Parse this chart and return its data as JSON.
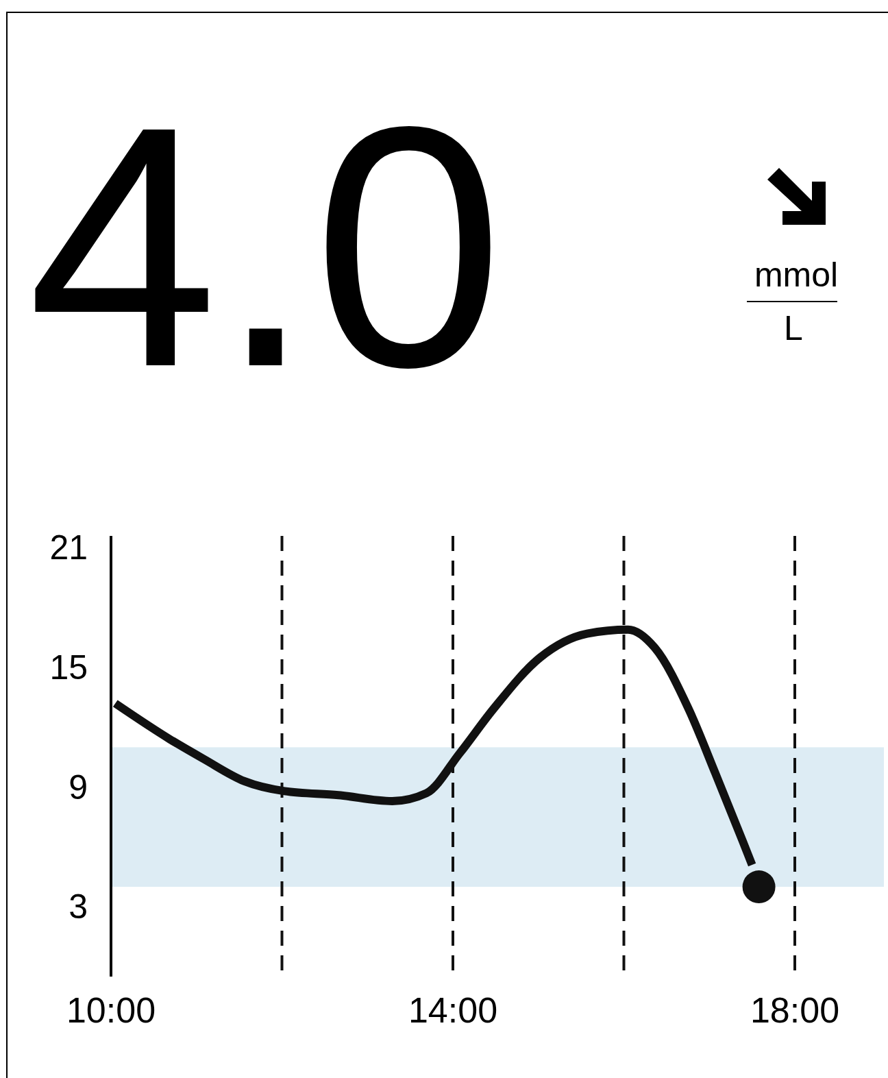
{
  "chart_data": {
    "type": "line",
    "title": "4.0",
    "annotations": [
      "mmol",
      "L"
    ],
    "xlim": [
      10,
      18
    ],
    "xticks": [
      {
        "value": 10,
        "label": "10:00"
      },
      {
        "value": 12,
        "label": null
      },
      {
        "value": 14,
        "label": "14:00"
      },
      {
        "value": 16,
        "label": null
      },
      {
        "value": 18,
        "label": "18:00"
      }
    ],
    "ylim": [
      -0.5,
      21.6
    ],
    "yticks": [
      3,
      9,
      15,
      21
    ],
    "grid": "x",
    "line_style": "solid",
    "marker": "none",
    "bands": [
      {
        "axis": "y",
        "from": 4,
        "to": 11,
        "color": "#ddecf4"
      }
    ],
    "series": [
      {
        "color": "#111111",
        "x": [
          10.05,
          10.69,
          11.09,
          11.56,
          12.03,
          12.66,
          13.29,
          13.69,
          14.08,
          14.47,
          15.02,
          15.57,
          16.05,
          16.36,
          16.76,
          17.07,
          17.39,
          17.5
        ],
        "values": [
          13.2,
          11.4,
          10.4,
          9.3,
          8.8,
          8.6,
          8.3,
          8.7,
          10.7,
          12.9,
          15.5,
          16.7,
          16.9,
          16,
          12.9,
          9.7,
          6.3,
          5.1
        ]
      },
      {
        "type": "scatter",
        "color": "#111111",
        "marker": "circle",
        "x": [
          17.58
        ],
        "values": [
          4
        ]
      }
    ]
  }
}
